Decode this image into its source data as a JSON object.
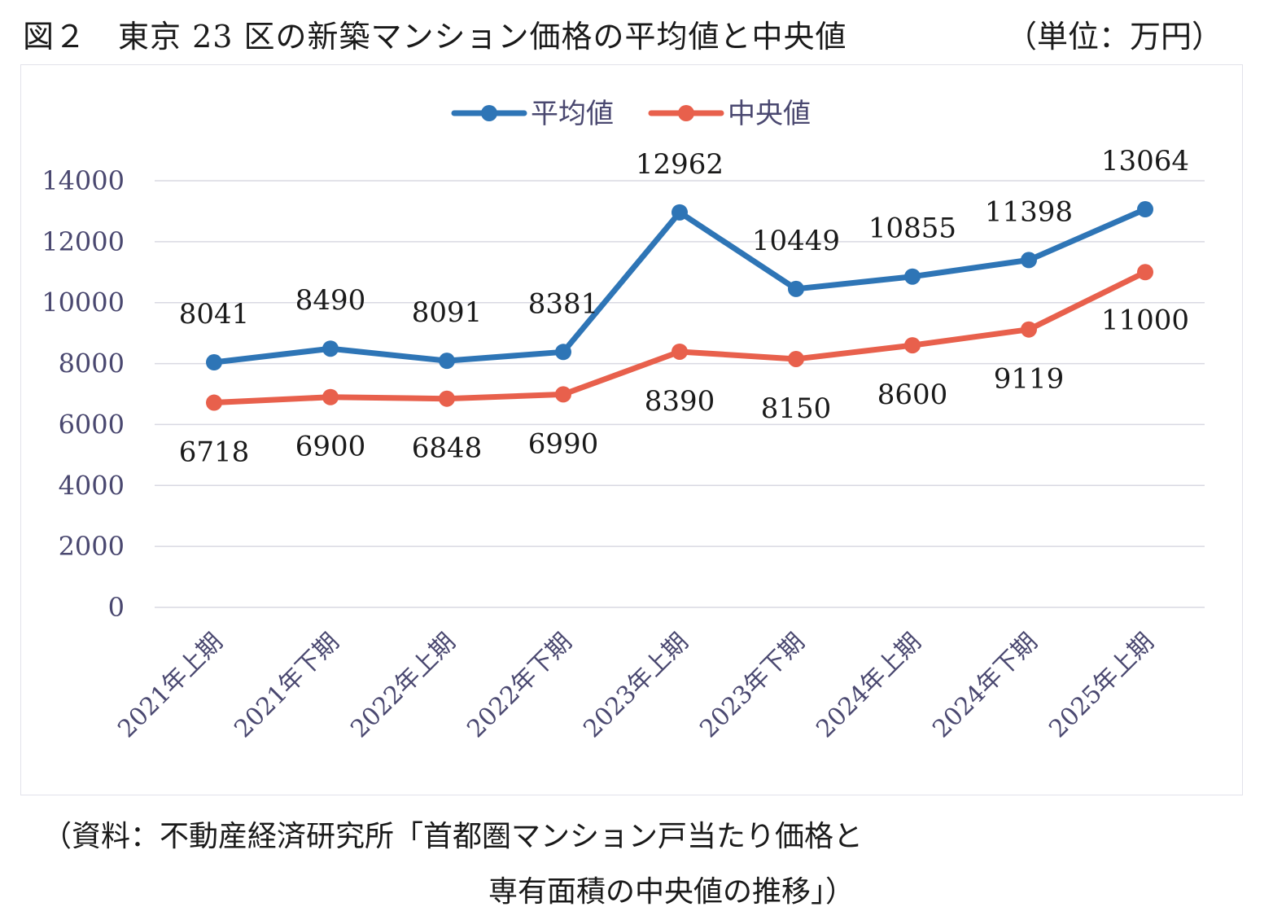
{
  "figure": {
    "title": "図２　東京 23 区の新築マンション価格の平均値と中央値",
    "unit": "（単位：万円）",
    "source_line1": "（資料：不動産経済研究所「首都圏マンション戸当たり価格と",
    "source_line2": "専有面積の中央値の推移」）"
  },
  "chart_data": {
    "type": "line",
    "title": "",
    "xlabel": "",
    "ylabel": "",
    "ylim": [
      0,
      14000
    ],
    "yticks": [
      0,
      2000,
      4000,
      6000,
      8000,
      10000,
      12000,
      14000
    ],
    "grid": true,
    "legend_position": "top-center",
    "categories": [
      "2021年上期",
      "2021年下期",
      "2022年上期",
      "2022年下期",
      "2023年上期",
      "2023年下期",
      "2024年上期",
      "2024年下期",
      "2025年上期"
    ],
    "series": [
      {
        "name": "平均値",
        "color": "#2e75b6",
        "values": [
          8041,
          8490,
          8091,
          8381,
          12962,
          10449,
          10855,
          11398,
          13064
        ],
        "labels": [
          "8041",
          "8490",
          "8091",
          "8381",
          "12962",
          "10449",
          "10855",
          "11398",
          "13064"
        ]
      },
      {
        "name": "中央値",
        "color": "#e8604c",
        "values": [
          6718,
          6900,
          6848,
          6990,
          8390,
          8150,
          8600,
          9119,
          11000
        ],
        "labels": [
          "6718",
          "6900",
          "6848",
          "6990",
          "8390",
          "8150",
          "8600",
          "9119",
          "11000"
        ]
      }
    ],
    "colors": {
      "grid": "#d9d9e2",
      "tick_text": "#4a4870",
      "data_label": "#1a1a1a"
    }
  }
}
